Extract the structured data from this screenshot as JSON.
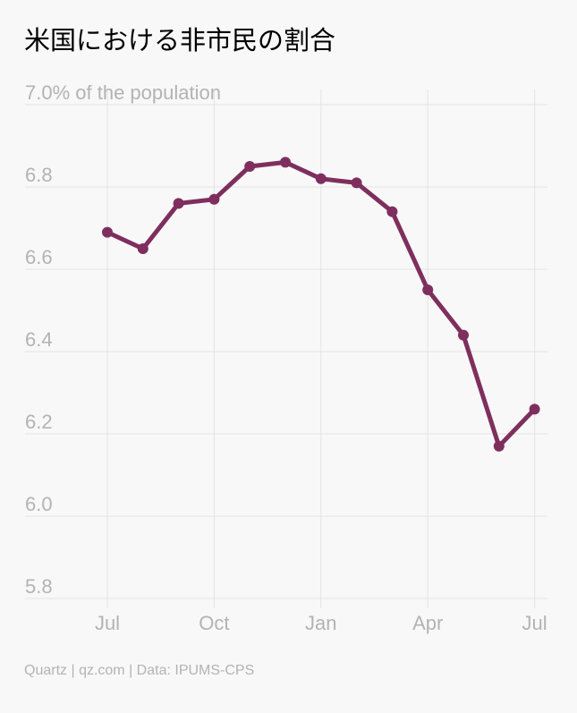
{
  "chart_data": {
    "type": "line",
    "title": "米国における非市民の割合",
    "ylabel": "",
    "xlabel": "",
    "top_tick_label": "7.0% of the population",
    "ylim": [
      5.8,
      7.0
    ],
    "yticks": [
      5.8,
      6.0,
      6.2,
      6.4,
      6.6,
      6.8,
      7.0
    ],
    "y_tick_labels": [
      "5.8",
      "6.0",
      "6.2",
      "6.4",
      "6.6",
      "6.8"
    ],
    "x_tick_labels": [
      "Jul",
      "Oct",
      "Jan",
      "Apr",
      "Jul"
    ],
    "x_tick_months": [
      0,
      3,
      6,
      9,
      12
    ],
    "grid": true,
    "line_color": "#7e2f5e",
    "series": [
      {
        "x_months": [
          0,
          1,
          2,
          3,
          4,
          5,
          6,
          7,
          8,
          9,
          10,
          11,
          12
        ],
        "values": [
          6.69,
          6.65,
          6.76,
          6.77,
          6.85,
          6.86,
          6.82,
          6.81,
          6.74,
          6.55,
          6.44,
          6.17,
          6.26
        ]
      }
    ]
  },
  "footer": {
    "source": "Quartz | qz.com | Data: IPUMS-CPS"
  }
}
